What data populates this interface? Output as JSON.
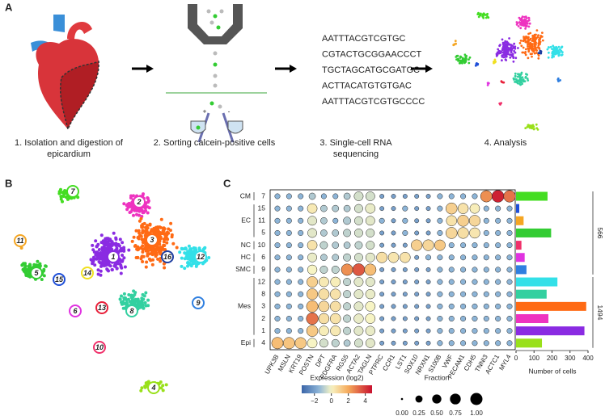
{
  "panel_labels": [
    "A",
    "B",
    "C"
  ],
  "workflow": {
    "steps": [
      {
        "lines": [
          "1. Isolation and digestion of",
          "epicardium"
        ]
      },
      {
        "lines": [
          "2. Sorting calcein-positive cells"
        ]
      },
      {
        "lines": [
          "3. Single-cell RNA",
          "sequencing"
        ]
      },
      {
        "lines": [
          "4. Analysis"
        ]
      }
    ],
    "sort_signs": [
      "+",
      "-"
    ],
    "sequences": [
      {
        "text": "AATTTACGTCGTGC",
        "color": "#e8202a"
      },
      {
        "text": "CGTACTGCGGAACCCT",
        "color": "#f0d020"
      },
      {
        "text": "TGCTAGCATGCGATGC",
        "color": "#1a8a4a"
      },
      {
        "text": "ACTTACATGTGTGAC",
        "color": "#1a2a8a"
      },
      {
        "text": "AATTTACGTCGTGCCCC",
        "color": "#e01050"
      }
    ]
  },
  "tsne": {
    "clusters": [
      {
        "label": "1",
        "color": "#8a2be2"
      },
      {
        "label": "2",
        "color": "#ee33c0"
      },
      {
        "label": "3",
        "color": "#ff6a14"
      },
      {
        "label": "4",
        "color": "#99e01a"
      },
      {
        "label": "5",
        "color": "#33cc33"
      },
      {
        "label": "6",
        "color": "#e033e0"
      },
      {
        "label": "7",
        "color": "#44dd22"
      },
      {
        "label": "8",
        "color": "#33d0a0"
      },
      {
        "label": "9",
        "color": "#2f7fe0"
      },
      {
        "label": "10",
        "color": "#f0306a"
      },
      {
        "label": "11",
        "color": "#f5a623"
      },
      {
        "label": "12",
        "color": "#33e0e8"
      },
      {
        "label": "13",
        "color": "#e8203a"
      },
      {
        "label": "14",
        "color": "#f0e020"
      },
      {
        "label": "15",
        "color": "#1f4fd8"
      },
      {
        "label": "16",
        "color": "#1f3fa0"
      }
    ]
  },
  "chart_data": [
    {
      "type": "dot",
      "genes": [
        "UPK3B",
        "MSLN",
        "KRT19",
        "POSTN",
        "DPT",
        "PDGFRA",
        "RGS5",
        "ACTA2",
        "TAGLN",
        "PTPRC",
        "CCR1",
        "LST1",
        "SOX10",
        "NRXN1",
        "S100B",
        "VWF",
        "PECAM1",
        "CDH5",
        "TNNI3",
        "ACTC1",
        "MYL4"
      ],
      "groups": [
        {
          "label": "CM",
          "rows": [
            "7"
          ]
        },
        {
          "label": "EC",
          "rows": [
            "15",
            "11",
            "5"
          ]
        },
        {
          "label": "NC",
          "rows": [
            "10"
          ]
        },
        {
          "label": "HC",
          "rows": [
            "6"
          ]
        },
        {
          "label": "SMC",
          "rows": [
            "9"
          ]
        },
        {
          "label": "Mes",
          "rows": [
            "12",
            "8",
            "3",
            "2",
            "1"
          ]
        },
        {
          "label": "Epi",
          "rows": [
            "4"
          ]
        }
      ],
      "values": [
        [
          -1.5,
          -1.5,
          -1.5,
          -1,
          -1.5,
          -1.5,
          -1,
          -0.5,
          -0.5,
          -2,
          -2,
          -2,
          -2,
          -2,
          -1.5,
          -1.5,
          -1.5,
          -1.5,
          2.5,
          4.5,
          3
        ],
        [
          -1.5,
          -1.5,
          -1.5,
          0.3,
          -1,
          -1,
          -1,
          -0.5,
          -0.2,
          -2,
          -2,
          -1.5,
          -2,
          -2,
          -1.5,
          1,
          0.5,
          0.2,
          -1.5,
          -1.5,
          -1.5
        ],
        [
          -1.5,
          -1.5,
          -1.5,
          -0.3,
          -1,
          -1.5,
          -1,
          -0.5,
          -0.3,
          -1.5,
          -2,
          -1.5,
          -2,
          -2,
          -1.5,
          0.5,
          1,
          0.8,
          -1.5,
          -1.5,
          -1.5
        ],
        [
          -1.5,
          -1.5,
          -1.5,
          -0.3,
          -1,
          -1,
          -0.8,
          -0.5,
          -0.5,
          -2,
          -2,
          -1.5,
          -2,
          -2,
          -1.5,
          0.8,
          0.6,
          0.4,
          -1.5,
          -1.5,
          -1.5
        ],
        [
          -1.5,
          -1.5,
          -1.5,
          0.5,
          -0.8,
          -1,
          -1,
          -0.8,
          -0.5,
          -2,
          -2,
          -2,
          1,
          0.8,
          1.2,
          -1.5,
          -1.5,
          -1.5,
          -1.5,
          -1.5,
          -1.5
        ],
        [
          -1.5,
          -1.5,
          -1.5,
          -0.2,
          -1,
          -1,
          -0.8,
          -0.5,
          -0.3,
          0.6,
          0.4,
          0.5,
          -2,
          -1.5,
          -1.5,
          -1.5,
          -1.5,
          -1.5,
          -1.5,
          -1.5,
          -1.5
        ],
        [
          -1.5,
          -1.5,
          -1.5,
          0,
          -0.8,
          -0.8,
          2.5,
          3.5,
          1.5,
          -2,
          -2,
          -2,
          -2,
          -2,
          -1.5,
          -1.5,
          -1.5,
          -1.5,
          -1.5,
          -1.5,
          -1.5
        ],
        [
          -1.5,
          -1.5,
          -1.5,
          1,
          0.3,
          0.2,
          -0.8,
          -0.3,
          -0.3,
          -2,
          -2,
          -2,
          -2,
          -2,
          -1.5,
          -1.5,
          -1.5,
          -1.5,
          -1.5,
          -1.5,
          -1.5
        ],
        [
          -1.5,
          -1.5,
          -1.5,
          1.2,
          0.6,
          0.5,
          -0.8,
          -0.3,
          -0.2,
          -2,
          -2,
          -2,
          -2,
          -2,
          -1.5,
          -1.5,
          -1.5,
          -1.5,
          -1.5,
          -1.5,
          -1.5
        ],
        [
          -1.5,
          -1.5,
          -1.5,
          1.5,
          0.8,
          0.6,
          -0.8,
          -0.3,
          0,
          -2,
          -2,
          -2,
          -2,
          -2,
          -1.5,
          -1.5,
          -1.5,
          -1.5,
          -1.5,
          -1.5,
          -1.5
        ],
        [
          -1.5,
          -1.5,
          -1.5,
          3,
          0.6,
          0.5,
          -0.8,
          -0.2,
          0,
          -2,
          -2,
          -2,
          -2,
          -2,
          -1.5,
          -1.5,
          -1.5,
          -1.5,
          -1.5,
          -1.5,
          -1.5
        ],
        [
          -1.5,
          -1.5,
          -1.5,
          1.2,
          0.2,
          0.3,
          -0.8,
          -0.3,
          -0.2,
          -2,
          -2,
          -2,
          -2,
          -2,
          -1.5,
          -1.5,
          -1.5,
          -1.5,
          -1.5,
          -1.5,
          -1.5
        ],
        [
          1.5,
          1.3,
          1.2,
          0,
          -0.5,
          -0.8,
          -1,
          -0.5,
          -0.3,
          -2,
          -2,
          -2,
          -2,
          -2,
          -1.5,
          -1.5,
          -1.5,
          -1.5,
          -1.5,
          -1.5,
          -1.5
        ]
      ],
      "sizes": [
        [
          0.1,
          0.1,
          0.1,
          0.2,
          0.1,
          0.1,
          0.2,
          0.5,
          0.5,
          0.05,
          0.05,
          0.05,
          0.05,
          0.05,
          0.1,
          0.1,
          0.1,
          0.1,
          0.9,
          1.0,
          0.95
        ],
        [
          0.1,
          0.1,
          0.1,
          0.6,
          0.2,
          0.2,
          0.2,
          0.4,
          0.6,
          0.05,
          0.05,
          0.1,
          0.05,
          0.05,
          0.1,
          0.85,
          0.7,
          0.6,
          0.1,
          0.1,
          0.1
        ],
        [
          0.1,
          0.1,
          0.1,
          0.5,
          0.2,
          0.1,
          0.3,
          0.4,
          0.5,
          0.1,
          0.05,
          0.1,
          0.05,
          0.05,
          0.1,
          0.7,
          0.85,
          0.8,
          0.1,
          0.1,
          0.1
        ],
        [
          0.1,
          0.1,
          0.1,
          0.5,
          0.2,
          0.2,
          0.3,
          0.4,
          0.4,
          0.05,
          0.05,
          0.1,
          0.05,
          0.05,
          0.1,
          0.85,
          0.8,
          0.7,
          0.1,
          0.1,
          0.1
        ],
        [
          0.1,
          0.1,
          0.1,
          0.6,
          0.3,
          0.2,
          0.2,
          0.3,
          0.4,
          0.05,
          0.05,
          0.05,
          0.8,
          0.8,
          0.75,
          0.1,
          0.1,
          0.1,
          0.1,
          0.1,
          0.1
        ],
        [
          0.1,
          0.1,
          0.1,
          0.5,
          0.2,
          0.2,
          0.3,
          0.4,
          0.5,
          0.75,
          0.7,
          0.7,
          0.05,
          0.1,
          0.1,
          0.1,
          0.1,
          0.1,
          0.1,
          0.1,
          0.1
        ],
        [
          0.1,
          0.1,
          0.1,
          0.55,
          0.3,
          0.3,
          0.9,
          1.0,
          0.9,
          0.05,
          0.05,
          0.05,
          0.05,
          0.05,
          0.1,
          0.1,
          0.1,
          0.1,
          0.1,
          0.1,
          0.1
        ],
        [
          0.1,
          0.1,
          0.1,
          0.75,
          0.6,
          0.6,
          0.3,
          0.5,
          0.5,
          0.05,
          0.05,
          0.05,
          0.05,
          0.05,
          0.1,
          0.1,
          0.1,
          0.1,
          0.1,
          0.1,
          0.1
        ],
        [
          0.1,
          0.1,
          0.1,
          0.8,
          0.75,
          0.7,
          0.3,
          0.5,
          0.55,
          0.05,
          0.05,
          0.05,
          0.05,
          0.05,
          0.1,
          0.1,
          0.1,
          0.1,
          0.1,
          0.1,
          0.1
        ],
        [
          0.1,
          0.1,
          0.1,
          0.9,
          0.75,
          0.7,
          0.3,
          0.5,
          0.6,
          0.05,
          0.05,
          0.05,
          0.05,
          0.05,
          0.1,
          0.1,
          0.1,
          0.1,
          0.1,
          0.1,
          0.1
        ],
        [
          0.1,
          0.1,
          0.1,
          0.95,
          0.7,
          0.7,
          0.3,
          0.55,
          0.6,
          0.05,
          0.05,
          0.05,
          0.05,
          0.05,
          0.1,
          0.1,
          0.1,
          0.1,
          0.1,
          0.1,
          0.1
        ],
        [
          0.1,
          0.1,
          0.1,
          0.85,
          0.6,
          0.65,
          0.3,
          0.5,
          0.55,
          0.05,
          0.05,
          0.05,
          0.05,
          0.05,
          0.1,
          0.1,
          0.1,
          0.1,
          0.1,
          0.1,
          0.1
        ],
        [
          0.9,
          0.9,
          0.85,
          0.6,
          0.4,
          0.3,
          0.2,
          0.4,
          0.5,
          0.05,
          0.05,
          0.05,
          0.05,
          0.05,
          0.1,
          0.1,
          0.1,
          0.1,
          0.1,
          0.1,
          0.1
        ]
      ],
      "color_legend": {
        "title": "Expression (log2)",
        "lim": [
          -3.5,
          4.8
        ],
        "ticks": [
          {
            "value": -2,
            "label": "−2"
          },
          0,
          2,
          4
        ]
      },
      "size_legend": {
        "title": "Fraction",
        "ticks": [
          {
            "value": 0,
            "label": "0.00"
          },
          {
            "value": 0.25,
            "label": "0.25"
          },
          {
            "value": 0.5,
            "label": "0.50"
          },
          {
            "value": 0.75,
            "label": "0.75"
          },
          {
            "value": 1,
            "label": "1.00"
          }
        ]
      }
    },
    {
      "type": "hbar",
      "values": [
        175,
        18,
        42,
        195,
        30,
        48,
        58,
        230,
        170,
        390,
        180,
        380,
        144
      ],
      "colors": [
        "#44dd22",
        "#1f4fd8",
        "#f5a623",
        "#33cc33",
        "#f0306a",
        "#e033e0",
        "#2f7fe0",
        "#33e0e8",
        "#33d0a0",
        "#ff6a14",
        "#ee33c0",
        "#8a2be2",
        "#99e01a"
      ],
      "xlim": [
        0,
        400
      ],
      "xticks": [
        0,
        100,
        200,
        300,
        400
      ],
      "xlabel": "Number of cells",
      "brackets": [
        "566",
        "1494"
      ]
    }
  ]
}
